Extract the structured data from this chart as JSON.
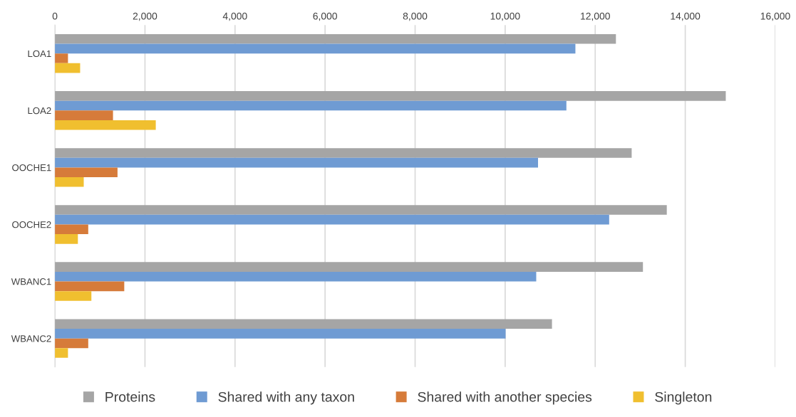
{
  "chart_data": {
    "type": "bar",
    "orientation": "horizontal",
    "categories": [
      "LOA1",
      "LOA2",
      "OOCHE1",
      "OOCHE2",
      "WBANC1",
      "WBANC2"
    ],
    "series": [
      {
        "name": "Proteins",
        "color": "#a5a5a5",
        "values": [
          12460,
          14900,
          12810,
          13590,
          13060,
          11040
        ]
      },
      {
        "name": "Shared with any taxon",
        "color": "#6f9bd3",
        "values": [
          11560,
          11360,
          10730,
          12310,
          10690,
          10010
        ]
      },
      {
        "name": "Shared with another species",
        "color": "#d67b3a",
        "values": [
          290,
          1290,
          1390,
          740,
          1540,
          740
        ]
      },
      {
        "name": "Singleton",
        "color": "#f0bf2f",
        "values": [
          560,
          2240,
          640,
          510,
          810,
          290
        ]
      }
    ],
    "xlim": [
      0,
      16000
    ],
    "xticks": [
      {
        "value": 0,
        "label": "0"
      },
      {
        "value": 2000,
        "label": "2,000"
      },
      {
        "value": 4000,
        "label": "4,000"
      },
      {
        "value": 6000,
        "label": "6,000"
      },
      {
        "value": 8000,
        "label": "8,000"
      },
      {
        "value": 10000,
        "label": "10,000"
      },
      {
        "value": 12000,
        "label": "12,000"
      },
      {
        "value": 14000,
        "label": "14,000"
      },
      {
        "value": 16000,
        "label": "16,000"
      }
    ],
    "grid": "x",
    "legend": "bottom"
  }
}
